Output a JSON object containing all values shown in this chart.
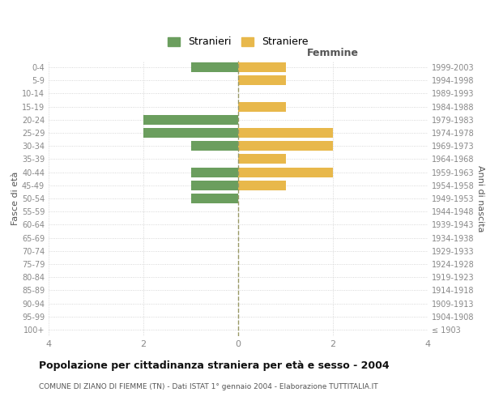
{
  "age_groups": [
    "100+",
    "95-99",
    "90-94",
    "85-89",
    "80-84",
    "75-79",
    "70-74",
    "65-69",
    "60-64",
    "55-59",
    "50-54",
    "45-49",
    "40-44",
    "35-39",
    "30-34",
    "25-29",
    "20-24",
    "15-19",
    "10-14",
    "5-9",
    "0-4"
  ],
  "birth_years": [
    "≤ 1903",
    "1904-1908",
    "1909-1913",
    "1914-1918",
    "1919-1923",
    "1924-1928",
    "1929-1933",
    "1934-1938",
    "1939-1943",
    "1944-1948",
    "1949-1953",
    "1954-1958",
    "1959-1963",
    "1964-1968",
    "1969-1973",
    "1974-1978",
    "1979-1983",
    "1984-1988",
    "1989-1993",
    "1994-1998",
    "1999-2003"
  ],
  "males": [
    0,
    0,
    0,
    0,
    0,
    0,
    0,
    0,
    0,
    0,
    1,
    1,
    1,
    0,
    1,
    2,
    2,
    0,
    0,
    0,
    1
  ],
  "females": [
    0,
    0,
    0,
    0,
    0,
    0,
    0,
    0,
    0,
    0,
    0,
    1,
    2,
    1,
    2,
    2,
    0,
    1,
    0,
    1,
    1
  ],
  "male_color": "#6b9e5e",
  "female_color": "#e8b84b",
  "grid_color": "#cccccc",
  "center_line_color": "#999966",
  "title": "Popolazione per cittadinanza straniera per età e sesso - 2004",
  "subtitle": "COMUNE DI ZIANO DI FIEMME (TN) - Dati ISTAT 1° gennaio 2004 - Elaborazione TUTTITALIA.IT",
  "ylabel_left": "Fasce di età",
  "ylabel_right": "Anni di nascita",
  "legend_male": "Stranieri",
  "legend_female": "Straniere",
  "xlim": 4,
  "femmine_label": "Femmine",
  "tick_color": "#888888",
  "label_color": "#555555"
}
